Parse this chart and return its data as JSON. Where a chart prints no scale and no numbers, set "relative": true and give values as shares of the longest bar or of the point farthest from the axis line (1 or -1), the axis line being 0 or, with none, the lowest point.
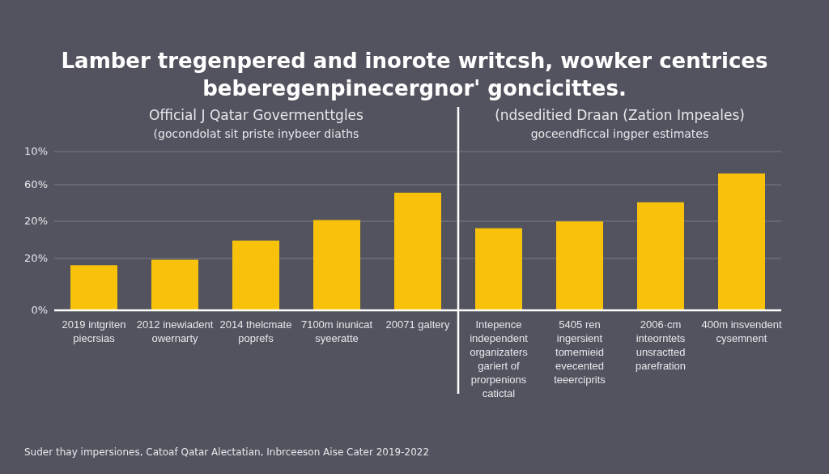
{
  "chart_data": {
    "type": "bar",
    "title": "Lamber tregenpered and inorote writcsh, wowker centrices beberegenpinecergnor' goncicittes.",
    "categories": [
      "2019 intgriten piecrsias",
      "2012 inewiadent owernarty",
      "2014 thelcmate poprefs",
      "7100m inunicat syeeratte",
      "20071 galtery",
      "Intepence independent organizaters gariert of prorpenions catictal",
      "5405 ren ingersient tomemieid evecented teeerciprits",
      "2006·cm inteorntets unsractted parefration",
      "400m insvendent cysemnent"
    ],
    "values": [
      0.33,
      0.37,
      0.51,
      0.66,
      0.86,
      0.6,
      0.65,
      0.79,
      1
    ],
    "color": "#f9c20a",
    "relative": true,
    "annotations": [
      "Official J Qatar Govermenttgles",
      "(gocondolat sit priste inybeer diaths",
      "(ndseditied Draan (Zation Impeales)",
      "goceendficcal ingper estimates",
      "Suder thay impersiones, Catoaf Qatar Alectatian, Inbrceeson Aise Cater 2019-2022",
      "0%",
      "20%",
      "20%",
      "60%",
      "10%"
    ]
  }
}
